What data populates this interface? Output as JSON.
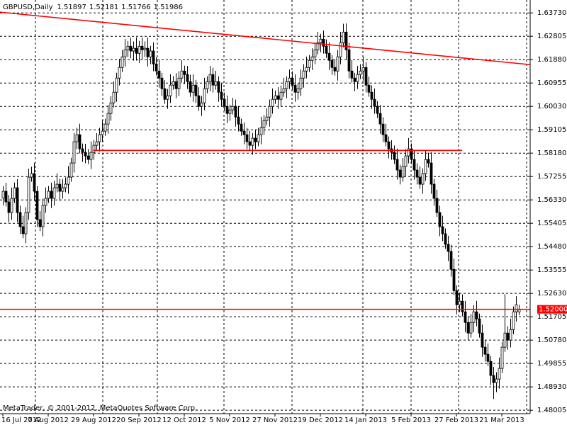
{
  "chart_data": {
    "type": "candlestick",
    "title": "GBPUSD,Daily",
    "watermark": "MetaTrader, © 2001-2012, MetaQuotes Software Corp.",
    "categories": [
      "16 Jul 2012",
      null,
      null,
      null,
      null,
      null,
      null,
      null,
      null,
      null,
      null,
      null,
      null,
      null,
      null,
      null,
      "7 Aug 2012",
      null,
      null,
      null,
      null,
      null,
      null,
      null,
      null,
      null,
      null,
      null,
      null,
      null,
      null,
      null,
      "29 Aug 2012",
      null,
      null,
      null,
      null,
      null,
      null,
      null,
      null,
      null,
      null,
      null,
      null,
      null,
      null,
      null,
      "20 Sep 2012",
      null,
      null,
      null,
      null,
      null,
      null,
      null,
      null,
      null,
      null,
      null,
      null,
      null,
      null,
      null,
      "12 Oct 2012",
      null,
      null,
      null,
      null,
      null,
      null,
      null,
      null,
      null,
      null,
      null,
      null,
      null,
      null,
      null,
      "5 Nov 2012",
      null,
      null,
      null,
      null,
      null,
      null,
      null,
      null,
      null,
      null,
      null,
      null,
      null,
      null,
      null,
      "27 Nov 2012",
      null,
      null,
      null,
      null,
      null,
      null,
      null,
      null,
      null,
      null,
      null,
      null,
      null,
      null,
      null,
      "19 Dec 2012",
      null,
      null,
      null,
      null,
      null,
      null,
      null,
      null,
      null,
      null,
      null,
      null,
      null,
      null,
      null,
      "14 Jan 2013",
      null,
      null,
      null,
      null,
      null,
      null,
      null,
      null,
      null,
      null,
      null,
      null,
      null,
      null,
      null,
      "5 Feb 2013",
      null,
      null,
      null,
      null,
      null,
      null,
      null,
      null,
      null,
      null,
      null,
      null,
      null,
      null,
      null,
      "27 Feb 2013",
      null,
      null,
      null,
      null,
      null,
      null,
      null,
      null,
      null,
      null,
      null,
      null,
      null,
      null,
      null,
      "21 Mar 2013",
      null,
      null,
      null,
      null,
      null,
      null
    ],
    "open": [
      1.564,
      1.5667,
      1.5625,
      1.5583,
      1.5639,
      1.5681,
      1.5583,
      1.5527,
      1.5499,
      1.5583,
      1.5723,
      1.5737,
      1.5667,
      1.5555,
      1.5527,
      1.5611,
      1.5639,
      1.5667,
      1.5639,
      1.5681,
      1.5695,
      1.5667,
      1.5681,
      1.5695,
      1.5723,
      1.5779,
      1.5863,
      1.5891,
      1.5835,
      1.5821,
      1.5807,
      1.5793,
      1.5821,
      1.5849,
      1.5863,
      1.5891,
      1.5905,
      1.5933,
      1.5975,
      1.6017,
      1.6059,
      1.6115,
      1.6157,
      1.6199,
      1.6227,
      1.6241,
      1.6222,
      1.6233,
      1.6213,
      1.6241,
      1.6227,
      1.6233,
      1.6199,
      1.6222,
      1.6171,
      1.6143,
      1.6115,
      1.6073,
      1.6031,
      1.6045,
      1.6087,
      1.6101,
      1.6073,
      1.6115,
      1.6143,
      1.6129,
      1.6101,
      1.6059,
      1.6087,
      1.6045,
      1.6003,
      1.6017,
      1.6073,
      1.6101,
      1.6129,
      1.6087,
      1.6101,
      1.6059,
      1.6031,
      1.6003,
      1.5975,
      1.5989,
      1.6003,
      1.5961,
      1.5933,
      1.5905,
      1.5891,
      1.5863,
      1.5849,
      1.5877,
      1.5863,
      1.5891,
      1.5919,
      1.5947,
      1.5961,
      1.6003,
      1.6031,
      1.6045,
      1.6031,
      1.6059,
      1.6073,
      1.6101,
      1.6115,
      1.6087,
      1.6059,
      1.6073,
      1.6115,
      1.6143,
      1.6157,
      1.6185,
      1.6199,
      1.6227,
      1.6255,
      1.6269,
      1.6241,
      1.6213,
      1.6185,
      1.6157,
      1.6143,
      1.6199,
      1.6255,
      1.6297,
      1.6227,
      1.6143,
      1.6115,
      1.6101,
      1.6129,
      1.6143,
      1.6157,
      1.6087,
      1.6059,
      1.6031,
      1.6003,
      1.5975,
      1.5933,
      1.5891,
      1.5863,
      1.5835,
      1.5821,
      1.5793,
      1.5751,
      1.5723,
      1.5765,
      1.5807,
      1.5835,
      1.5793,
      1.5751,
      1.5723,
      1.5695,
      1.5737,
      1.5793,
      1.5779,
      1.5695,
      1.5639,
      1.5583,
      1.5527,
      1.5499,
      1.5457,
      1.5429,
      1.5358,
      1.5274,
      1.5218,
      1.5232,
      1.519,
      1.5148,
      1.5106,
      1.5148,
      1.519,
      1.5162,
      1.5106,
      1.505,
      1.5022,
      1.4994,
      1.4938,
      1.491,
      1.4924,
      1.4966,
      1.505,
      1.5106,
      1.5078,
      1.512,
      1.519,
      1.51897
    ],
    "high": [
      1.5688,
      1.5701,
      1.5652,
      1.5682,
      1.5702,
      1.5715,
      1.561,
      1.557,
      1.5604,
      1.5757,
      1.5764,
      1.578,
      1.5688,
      1.5589,
      1.5638,
      1.5682,
      1.5688,
      1.5701,
      1.5708,
      1.5738,
      1.5716,
      1.5715,
      1.5722,
      1.5766,
      1.58,
      1.5897,
      1.5918,
      1.5934,
      1.5856,
      1.5855,
      1.5834,
      1.5864,
      1.587,
      1.5897,
      1.5918,
      1.5948,
      1.5954,
      1.6009,
      1.6044,
      1.6102,
      1.6136,
      1.6191,
      1.6226,
      1.627,
      1.6262,
      1.6275,
      1.626,
      1.6276,
      1.6262,
      1.6275,
      1.626,
      1.6276,
      1.6243,
      1.6256,
      1.6198,
      1.6186,
      1.6136,
      1.6107,
      1.6072,
      1.613,
      1.6122,
      1.6135,
      1.6142,
      1.6186,
      1.6164,
      1.6163,
      1.6128,
      1.613,
      1.6108,
      1.6079,
      1.6044,
      1.6116,
      1.6122,
      1.6163,
      1.6156,
      1.6144,
      1.6122,
      1.6093,
      1.6058,
      1.6046,
      1.601,
      1.6037,
      1.603,
      1.6004,
      1.5954,
      1.5939,
      1.5918,
      1.5906,
      1.5898,
      1.5911,
      1.5918,
      1.5962,
      1.5968,
      1.5995,
      1.603,
      1.6074,
      1.6066,
      1.6079,
      1.6086,
      1.6116,
      1.6122,
      1.6149,
      1.6142,
      1.613,
      1.6094,
      1.6149,
      1.617,
      1.62,
      1.6206,
      1.6233,
      1.6254,
      1.6298,
      1.629,
      1.6303,
      1.6268,
      1.6256,
      1.6206,
      1.6191,
      1.6226,
      1.6298,
      1.633,
      1.6331,
      1.6254,
      1.6186,
      1.6136,
      1.6163,
      1.617,
      1.62,
      1.6178,
      1.6121,
      1.6086,
      1.6074,
      1.6024,
      1.6009,
      1.596,
      1.5934,
      1.5884,
      1.5869,
      1.5848,
      1.5836,
      1.5772,
      1.5799,
      1.5834,
      1.5878,
      1.5856,
      1.5827,
      1.5778,
      1.5766,
      1.5758,
      1.5827,
      1.582,
      1.5822,
      1.5716,
      1.5673,
      1.561,
      1.557,
      1.552,
      1.5491,
      1.5456,
      1.5401,
      1.5295,
      1.5266,
      1.5259,
      1.5233,
      1.5169,
      1.5182,
      1.5217,
      1.5233,
      1.5183,
      1.514,
      1.5077,
      1.5065,
      1.5015,
      1.4972,
      1.4951,
      1.5009,
      1.5071,
      1.526,
      1.5133,
      1.5163,
      1.5211,
      1.5252,
      1.52181
    ],
    "low": [
      1.5611,
      1.5607,
      1.5545,
      1.5554,
      1.5621,
      1.5545,
      1.5498,
      1.5481,
      1.5461,
      1.5554,
      1.5705,
      1.5629,
      1.5526,
      1.5509,
      1.5489,
      1.5582,
      1.5621,
      1.5601,
      1.561,
      1.5663,
      1.5629,
      1.5638,
      1.5663,
      1.5657,
      1.5705,
      1.5741,
      1.5834,
      1.5817,
      1.5783,
      1.5778,
      1.5775,
      1.5755,
      1.5792,
      1.5831,
      1.5825,
      1.5862,
      1.5887,
      1.5895,
      1.5946,
      1.5999,
      1.6021,
      1.6086,
      1.6139,
      1.6161,
      1.6198,
      1.6193,
      1.6184,
      1.6184,
      1.6175,
      1.6189,
      1.6198,
      1.6161,
      1.617,
      1.6142,
      1.6125,
      1.6077,
      1.6044,
      1.6013,
      1.5993,
      1.6016,
      1.6069,
      1.6035,
      1.6044,
      1.6097,
      1.6091,
      1.6072,
      1.6041,
      1.6021,
      1.6016,
      1.5985,
      1.5965,
      1.5988,
      1.6055,
      1.6063,
      1.6058,
      1.6069,
      1.6021,
      1.6002,
      1.5985,
      1.5937,
      1.5946,
      1.5971,
      1.5923,
      1.5904,
      1.5887,
      1.5853,
      1.5834,
      1.5831,
      1.5811,
      1.5834,
      1.5845,
      1.5853,
      1.589,
      1.5929,
      1.5923,
      1.5974,
      1.6013,
      1.5993,
      1.6002,
      1.6041,
      1.6035,
      1.6072,
      1.6069,
      1.6021,
      1.603,
      1.6044,
      1.6077,
      1.6114,
      1.6139,
      1.6147,
      1.617,
      1.6209,
      1.6217,
      1.6212,
      1.6195,
      1.6147,
      1.6128,
      1.6125,
      1.6105,
      1.617,
      1.6237,
      1.6189,
      1.6114,
      1.6097,
      1.6063,
      1.6072,
      1.6111,
      1.6105,
      1.6058,
      1.6041,
      1.5993,
      1.5974,
      1.5957,
      1.5895,
      1.5862,
      1.5845,
      1.5797,
      1.5792,
      1.5775,
      1.5713,
      1.5694,
      1.5705,
      1.5727,
      1.5778,
      1.5775,
      1.5713,
      1.5694,
      1.5677,
      1.5657,
      1.5708,
      1.5761,
      1.5657,
      1.561,
      1.5565,
      1.5489,
      1.547,
      1.5439,
      1.5391,
      1.5329,
      1.5256,
      1.518,
      1.5189,
      1.5172,
      1.511,
      1.5077,
      1.5088,
      1.511,
      1.5133,
      1.5088,
      1.5012,
      1.4993,
      1.4976,
      1.49,
      1.4845,
      1.4872,
      1.4886,
      1.4948,
      1.5032,
      1.504,
      1.5049,
      1.5102,
      1.5152,
      1.51766
    ],
    "close": [
      1.5667,
      1.5625,
      1.5583,
      1.5639,
      1.5681,
      1.5583,
      1.5527,
      1.5499,
      1.5583,
      1.5723,
      1.5737,
      1.5667,
      1.5555,
      1.5527,
      1.5611,
      1.5639,
      1.5667,
      1.5639,
      1.5681,
      1.5695,
      1.5667,
      1.5681,
      1.5695,
      1.5723,
      1.5779,
      1.5863,
      1.5891,
      1.5835,
      1.5821,
      1.5807,
      1.5793,
      1.5821,
      1.5849,
      1.5863,
      1.5891,
      1.5905,
      1.5933,
      1.5975,
      1.6017,
      1.6059,
      1.6115,
      1.6157,
      1.6199,
      1.6227,
      1.6241,
      1.6222,
      1.6233,
      1.6213,
      1.6241,
      1.6227,
      1.6233,
      1.6199,
      1.6222,
      1.6171,
      1.6143,
      1.6115,
      1.6073,
      1.6031,
      1.6045,
      1.6087,
      1.6101,
      1.6073,
      1.6115,
      1.6143,
      1.6129,
      1.6101,
      1.6059,
      1.6087,
      1.6045,
      1.6003,
      1.6017,
      1.6073,
      1.6101,
      1.6129,
      1.6087,
      1.6101,
      1.6059,
      1.6031,
      1.6003,
      1.5975,
      1.5989,
      1.6003,
      1.5961,
      1.5933,
      1.5905,
      1.5891,
      1.5863,
      1.5849,
      1.5877,
      1.5863,
      1.5891,
      1.5919,
      1.5947,
      1.5961,
      1.6003,
      1.6031,
      1.6045,
      1.6031,
      1.6059,
      1.6073,
      1.6101,
      1.6115,
      1.6087,
      1.6059,
      1.6073,
      1.6115,
      1.6143,
      1.6157,
      1.6185,
      1.6199,
      1.6227,
      1.6255,
      1.6269,
      1.6241,
      1.6213,
      1.6185,
      1.6157,
      1.6143,
      1.6199,
      1.6255,
      1.6297,
      1.6227,
      1.6143,
      1.6115,
      1.6101,
      1.6129,
      1.6143,
      1.6157,
      1.6087,
      1.6059,
      1.6031,
      1.6003,
      1.5975,
      1.5933,
      1.5891,
      1.5863,
      1.5835,
      1.5821,
      1.5793,
      1.5751,
      1.5723,
      1.5765,
      1.5807,
      1.5835,
      1.5793,
      1.5751,
      1.5723,
      1.5695,
      1.5737,
      1.5793,
      1.5779,
      1.5695,
      1.5639,
      1.5583,
      1.5527,
      1.5499,
      1.5457,
      1.5429,
      1.5358,
      1.5274,
      1.5218,
      1.5232,
      1.519,
      1.5148,
      1.5106,
      1.5148,
      1.519,
      1.5162,
      1.5106,
      1.505,
      1.5022,
      1.4994,
      1.4938,
      1.491,
      1.4924,
      1.4966,
      1.505,
      1.5106,
      1.5078,
      1.512,
      1.519,
      1.5218,
      1.51986
    ],
    "bull_color": "#ffffff",
    "bear_color": "#000000",
    "candle_outline": "#000000",
    "ylim": [
      1.4787,
      1.6424
    ],
    "yticks": [
      {
        "value": 1.6373,
        "label": "1.63730"
      },
      {
        "value": 1.62805,
        "label": "1.62805"
      },
      {
        "value": 1.6188,
        "label": "1.61880"
      },
      {
        "value": 1.60955,
        "label": "1.60955"
      },
      {
        "value": 1.6003,
        "label": "1.60030"
      },
      {
        "value": 1.59105,
        "label": "1.59105"
      },
      {
        "value": 1.5818,
        "label": "1.58180"
      },
      {
        "value": 1.57255,
        "label": "1.57255"
      },
      {
        "value": 1.5633,
        "label": "1.56330"
      },
      {
        "value": 1.55405,
        "label": "1.55405"
      },
      {
        "value": 1.5448,
        "label": "1.54480"
      },
      {
        "value": 1.53555,
        "label": "1.53555"
      },
      {
        "value": 1.5263,
        "label": "1.52630"
      },
      {
        "value": 1.51705,
        "label": "1.51705"
      },
      {
        "value": 1.5078,
        "label": "1.50780"
      },
      {
        "value": 1.49855,
        "label": "1.49855"
      },
      {
        "value": 1.4893,
        "label": "1.48930"
      },
      {
        "value": 1.48005,
        "label": "1.48005"
      }
    ],
    "grid": true,
    "hline": {
      "value": 1.52,
      "label": "1.52000",
      "color": "#ff0000"
    },
    "segments": [
      {
        "x": [
          -1,
          188
        ],
        "y": [
          1.6376,
          1.6166
        ],
        "color": "#ff0000"
      },
      {
        "x": [
          32,
          162
        ],
        "y": [
          1.5829,
          1.5829
        ],
        "color": "#ff0000"
      }
    ]
  }
}
